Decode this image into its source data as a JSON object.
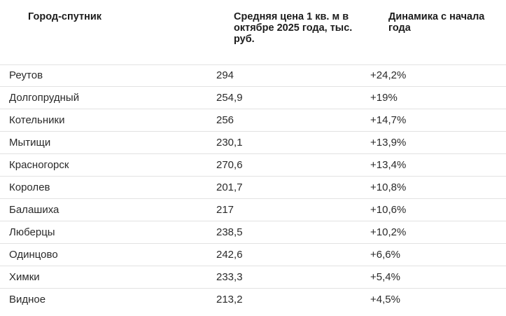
{
  "table": {
    "headers": {
      "city": "Город-спутник",
      "price": "Средняя цена 1 кв. м в октябре 2025 года, тыс. руб.",
      "change": "Динамика с начала года"
    },
    "rows": [
      {
        "city": "Реутов",
        "price": "294",
        "change": "+24,2%"
      },
      {
        "city": "Долгопрудный",
        "price": "254,9",
        "change": "+19%"
      },
      {
        "city": "Котельники",
        "price": "256",
        "change": "+14,7%"
      },
      {
        "city": "Мытищи",
        "price": "230,1",
        "change": "+13,9%"
      },
      {
        "city": "Красногорск",
        "price": "270,6",
        "change": "+13,4%"
      },
      {
        "city": "Королев",
        "price": "201,7",
        "change": "+10,8%"
      },
      {
        "city": "Балашиха",
        "price": "217",
        "change": "+10,6%"
      },
      {
        "city": "Люберцы",
        "price": "238,5",
        "change": "+10,2%"
      },
      {
        "city": "Одинцово",
        "price": "242,6",
        "change": "+6,6%"
      },
      {
        "city": "Химки",
        "price": "233,3",
        "change": "+5,4%"
      },
      {
        "city": "Видное",
        "price": "213,2",
        "change": "+4,5%"
      }
    ]
  }
}
